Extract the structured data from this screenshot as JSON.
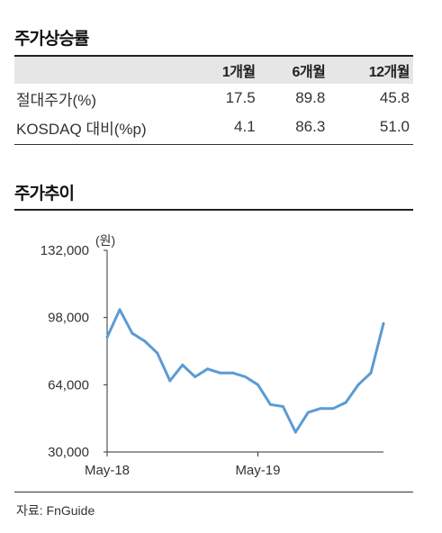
{
  "returns_section": {
    "title": "주가상승률",
    "columns": [
      "",
      "1개월",
      "6개월",
      "12개월"
    ],
    "rows": [
      {
        "label": "절대주가(%)",
        "values": [
          "17.5",
          "89.8",
          "45.8"
        ]
      },
      {
        "label": "KOSDAQ 대비(%p)",
        "values": [
          "4.1",
          "86.3",
          "51.0"
        ]
      }
    ]
  },
  "chart_section": {
    "title": "주가추이"
  },
  "chart_data": {
    "type": "line",
    "title": "",
    "unit_label": "(원)",
    "xlabel": "",
    "ylabel": "",
    "ylim": [
      30000,
      132000
    ],
    "yticks": [
      "132,000",
      "98,000",
      "64,000",
      "30,000"
    ],
    "ytick_values": [
      132000,
      98000,
      64000,
      30000
    ],
    "xlim": [
      "2018-05",
      "2020-03"
    ],
    "xticks": [
      {
        "label": "May-18",
        "month": "2018-05"
      },
      {
        "label": "May-19",
        "month": "2019-05"
      }
    ],
    "grid": false,
    "legend": "none",
    "color": "#5b9bd5",
    "series": [
      {
        "name": "",
        "x": [
          "2018-05",
          "2018-06",
          "2018-07",
          "2018-08",
          "2018-09",
          "2018-10",
          "2018-11",
          "2018-12",
          "2019-01",
          "2019-02",
          "2019-03",
          "2019-04",
          "2019-05",
          "2019-06",
          "2019-07",
          "2019-08",
          "2019-09",
          "2019-10",
          "2019-11",
          "2019-12",
          "2020-01",
          "2020-02",
          "2020-03"
        ],
        "values": [
          88000,
          102000,
          90000,
          86000,
          80000,
          66000,
          74000,
          68000,
          72000,
          70000,
          70000,
          68000,
          64000,
          54000,
          53000,
          40000,
          50000,
          52000,
          52000,
          55000,
          64000,
          70000,
          95000
        ]
      }
    ]
  },
  "source": "자료: FnGuide"
}
